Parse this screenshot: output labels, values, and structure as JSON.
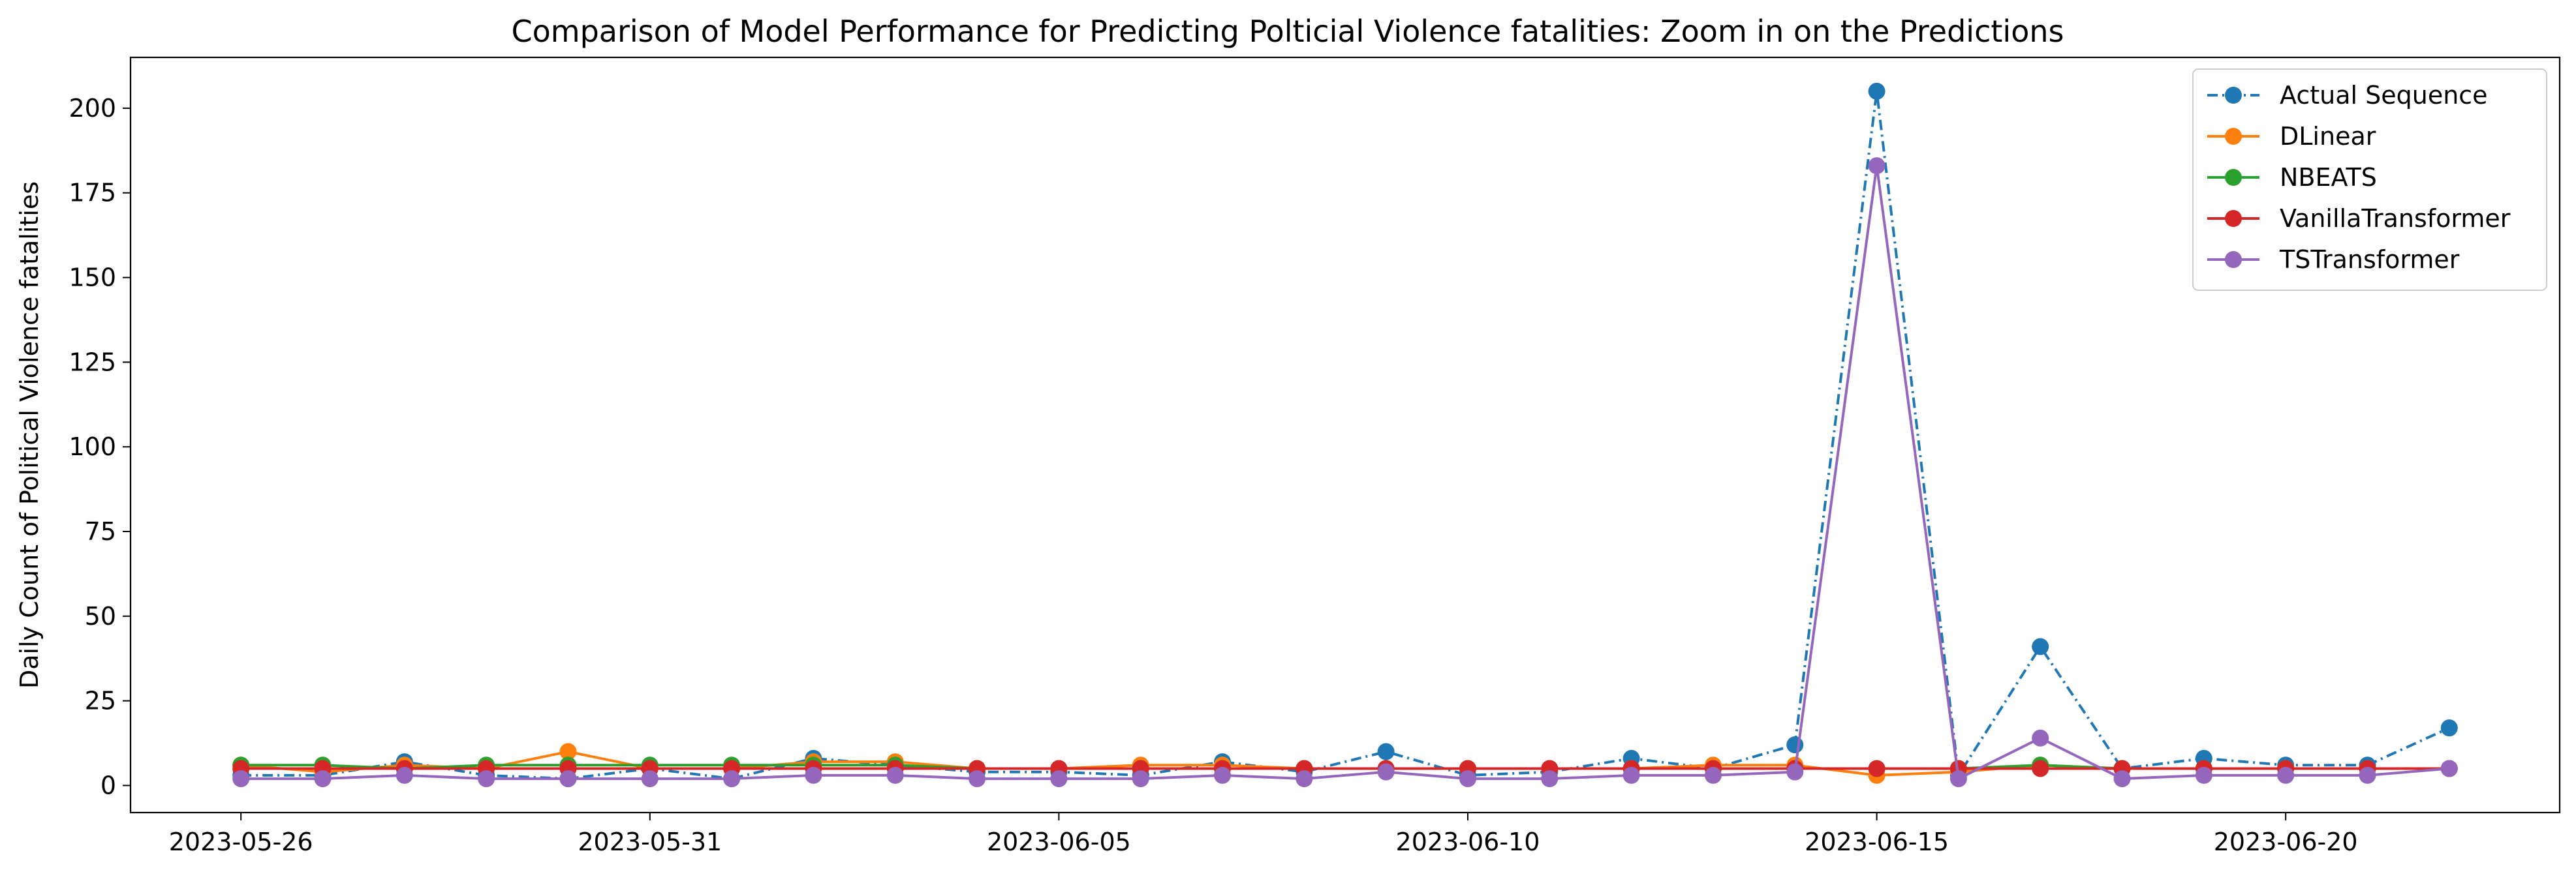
{
  "chart_data": {
    "type": "line",
    "title": "Comparison of Model Performance for Predicting Polticial Violence fatalities: Zoom in on the Predictions",
    "xlabel": "",
    "ylabel": "Daily Count of Political Violence fatalities",
    "x": [
      "2023-05-26",
      "2023-05-27",
      "2023-05-28",
      "2023-05-29",
      "2023-05-30",
      "2023-05-31",
      "2023-06-01",
      "2023-06-02",
      "2023-06-03",
      "2023-06-04",
      "2023-06-05",
      "2023-06-06",
      "2023-06-07",
      "2023-06-08",
      "2023-06-09",
      "2023-06-10",
      "2023-06-11",
      "2023-06-12",
      "2023-06-13",
      "2023-06-14",
      "2023-06-15",
      "2023-06-16",
      "2023-06-17",
      "2023-06-18",
      "2023-06-19",
      "2023-06-20",
      "2023-06-21",
      "2023-06-22"
    ],
    "xticks": [
      "2023-05-26",
      "2023-05-31",
      "2023-06-05",
      "2023-06-10",
      "2023-06-15",
      "2023-06-20"
    ],
    "yticks": [
      0,
      25,
      50,
      75,
      100,
      125,
      150,
      175,
      200
    ],
    "ylim": [
      -8,
      215
    ],
    "grid": false,
    "legend_position": "top-right",
    "series": [
      {
        "name": "Actual Sequence",
        "color": "#1f77b4",
        "linestyle": "dashdot",
        "values": [
          3,
          3,
          7,
          3,
          2,
          5,
          2,
          8,
          6,
          4,
          4,
          3,
          7,
          4,
          10,
          3,
          4,
          8,
          5,
          12,
          205,
          3,
          41,
          5,
          8,
          6,
          6,
          17
        ]
      },
      {
        "name": "DLinear",
        "color": "#ff7f0e",
        "linestyle": "solid",
        "values": [
          6,
          4,
          6,
          5,
          10,
          5,
          5,
          7,
          7,
          5,
          5,
          6,
          6,
          5,
          5,
          5,
          5,
          5,
          6,
          6,
          3,
          4,
          6,
          5,
          5,
          5,
          5,
          5
        ]
      },
      {
        "name": "NBEATS",
        "color": "#2ca02c",
        "linestyle": "solid",
        "values": [
          6,
          6,
          5,
          6,
          6,
          6,
          6,
          6,
          6,
          5,
          5,
          5,
          5,
          5,
          5,
          5,
          5,
          5,
          5,
          5,
          5,
          5,
          6,
          5,
          5,
          5,
          5,
          5
        ]
      },
      {
        "name": "VanillaTransformer",
        "color": "#d62728",
        "linestyle": "solid",
        "values": [
          5,
          5,
          5,
          5,
          5,
          5,
          5,
          5,
          5,
          5,
          5,
          5,
          5,
          5,
          5,
          5,
          5,
          5,
          5,
          5,
          5,
          5,
          5,
          5,
          5,
          5,
          5,
          5
        ]
      },
      {
        "name": "TSTransformer",
        "color": "#9467bd",
        "linestyle": "solid",
        "values": [
          2,
          2,
          3,
          2,
          2,
          2,
          2,
          3,
          3,
          2,
          2,
          2,
          3,
          2,
          4,
          2,
          2,
          3,
          3,
          4,
          183,
          2,
          14,
          2,
          3,
          3,
          3,
          5
        ]
      }
    ]
  }
}
